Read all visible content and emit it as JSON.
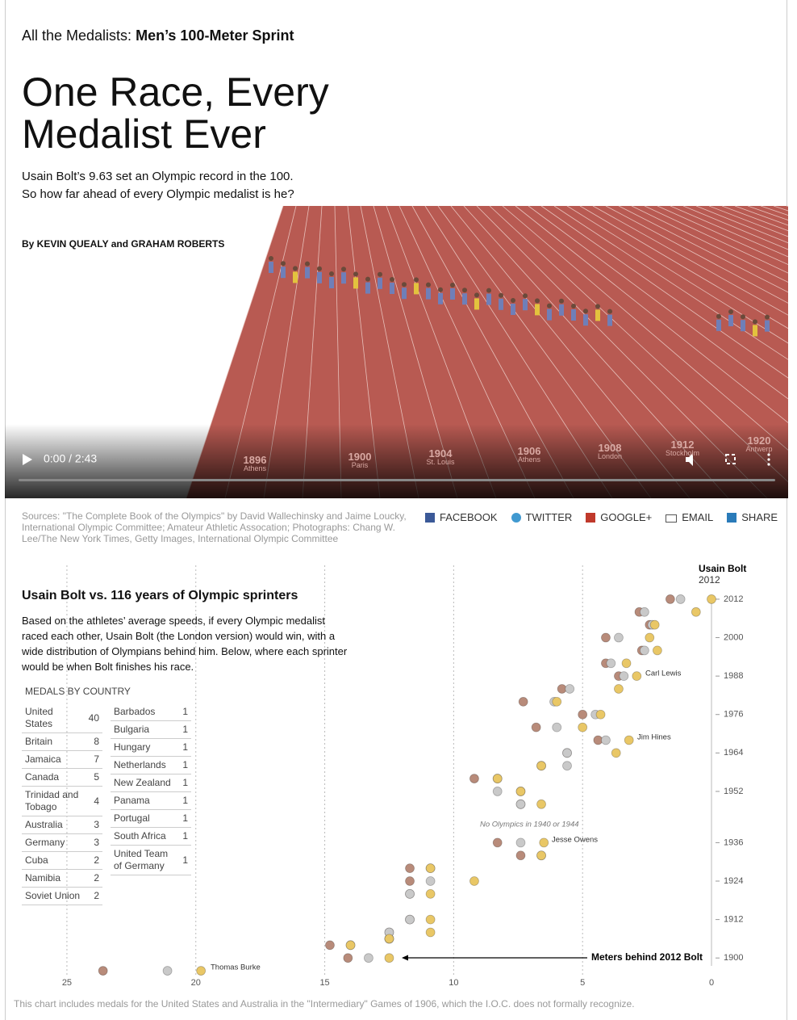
{
  "header": {
    "kicker": "All the Medalists:",
    "kicker_bold": "Men’s 100-Meter Sprint",
    "title": "One Race, Every Medalist Ever",
    "dek": "Usain Bolt’s 9.63 set an Olympic record in the 100. So how far ahead of every Olympic medalist is he?",
    "byline": "By KEVIN QUEALY and GRAHAM ROBERTS"
  },
  "video": {
    "time": "0:00 / 2:43",
    "track_labels": [
      {
        "year": 1896,
        "city": "Athens"
      },
      {
        "year": 1900,
        "city": "Paris"
      },
      {
        "year": 1904,
        "city": "St. Louis"
      },
      {
        "year": 1906,
        "city": "Athens"
      },
      {
        "year": 1908,
        "city": "London"
      },
      {
        "year": 1912,
        "city": "Stockholm"
      },
      {
        "year": 1920,
        "city": "Antwerp"
      }
    ]
  },
  "sources": "Sources: \"The Complete Book of the Olympics\" by David Wallechinsky and Jaime Loucky, International Olympic Committee; Amateur Athletic Assocation; Photographs: Chang W. Lee/The New York Times, Getty Images, International Olympic Committee",
  "share": [
    "FACEBOOK",
    "TWITTER",
    "GOOGLE+",
    "EMAIL",
    "SHARE"
  ],
  "chart_data": {
    "type": "scatter",
    "title": "Usain Bolt vs. 116 years of Olympic sprinters",
    "subtitle": "Based on the athletes’ average speeds, if every Olympic medalist raced each other, Usain Bolt (the London version) would win, with a wide distribution of Olympians behind him. Below, where each sprinter would be when Bolt finishes his race.",
    "bolt_label": "Usain Bolt",
    "bolt_year": 2012,
    "x_label": "Meters behind 2012 Bolt",
    "annotations": [
      "Thomas Burke",
      "Jesse Owens",
      "Jim Hines",
      "Carl Lewis",
      "No Olympics in 1940 or 1944"
    ],
    "y": [
      1896,
      1900,
      1904,
      1906,
      1908,
      1912,
      1920,
      1924,
      1928,
      1932,
      1936,
      1948,
      1952,
      1956,
      1960,
      1964,
      1968,
      1972,
      1976,
      1980,
      1984,
      1988,
      1992,
      1996,
      2000,
      2004,
      2008,
      2012
    ],
    "series": [
      {
        "color": "#e9c766",
        "values": [
          19.8,
          12.5,
          14.0,
          12.5,
          10.9,
          10.9,
          10.9,
          9.2,
          10.9,
          6.6,
          6.5,
          6.6,
          7.4,
          8.3,
          6.6,
          3.7,
          3.2,
          5.0,
          4.3,
          6.0,
          3.6,
          2.9,
          3.3,
          2.1,
          2.4,
          2.2,
          0.6,
          0
        ]
      },
      {
        "color": "#c9c9c9",
        "values": [
          21.1,
          13.3,
          14.0,
          12.5,
          12.5,
          11.7,
          11.7,
          10.9,
          10.9,
          6.6,
          7.4,
          7.4,
          8.3,
          8.3,
          5.6,
          5.6,
          4.1,
          6.0,
          4.5,
          6.1,
          5.5,
          3.4,
          3.9,
          2.6,
          3.6,
          2.3,
          2.6,
          1.2
        ]
      },
      {
        "color": "#b88b7a",
        "values": [
          23.6,
          14.1,
          14.8,
          12.5,
          12.5,
          11.7,
          11.7,
          11.7,
          11.7,
          7.4,
          8.3,
          7.4,
          7.4,
          9.2,
          6.6,
          5.6,
          4.4,
          6.8,
          5.0,
          7.3,
          5.8,
          3.6,
          4.1,
          2.7,
          4.1,
          2.4,
          2.8,
          1.6
        ]
      }
    ],
    "xlim": [
      26.5,
      0
    ],
    "ylim": [
      1894,
      2014
    ],
    "xticks": [
      25,
      20,
      15,
      10,
      5,
      0
    ],
    "yticks": [
      1900,
      1912,
      1924,
      1936,
      1952,
      1964,
      1976,
      1988,
      2000,
      2012
    ],
    "grid": true
  },
  "medals": {
    "title": "MEDALS BY COUNTRY",
    "left": [
      [
        "United States",
        40
      ],
      [
        "Britain",
        8
      ],
      [
        "Jamaica",
        7
      ],
      [
        "Canada",
        5
      ],
      [
        "Trinidad and Tobago",
        4
      ],
      [
        "Australia",
        3
      ],
      [
        "Germany",
        3
      ],
      [
        "Cuba",
        2
      ],
      [
        "Namibia",
        2
      ],
      [
        "Soviet Union",
        2
      ]
    ],
    "right": [
      [
        "Barbados",
        1
      ],
      [
        "Bulgaria",
        1
      ],
      [
        "Hungary",
        1
      ],
      [
        "Netherlands",
        1
      ],
      [
        "New Zealand",
        1
      ],
      [
        "Panama",
        1
      ],
      [
        "Portugal",
        1
      ],
      [
        "South Africa",
        1
      ],
      [
        "United Team of Germany",
        1
      ]
    ]
  },
  "footnote": "This chart includes medals for the United States and Australia in the \"Intermediary\" Games of 1906, which the I.O.C. does not formally recognize."
}
